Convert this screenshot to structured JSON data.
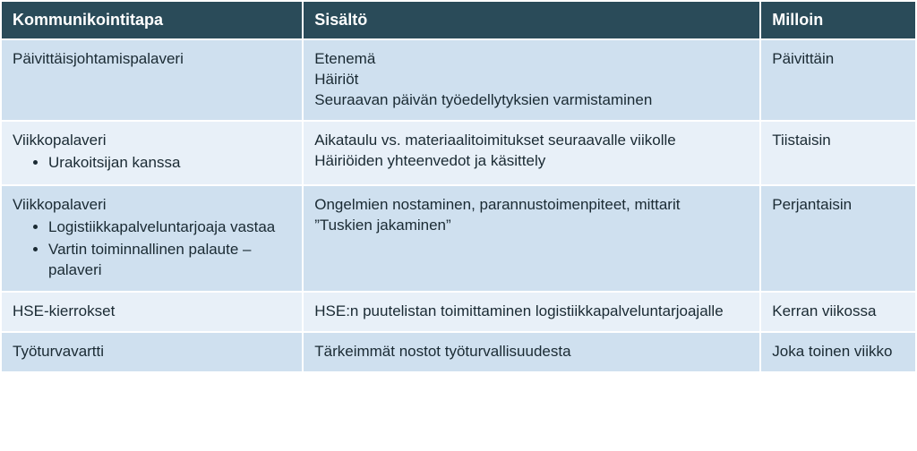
{
  "table": {
    "type": "table",
    "header_bg": "#2a4b59",
    "header_text_color": "#ffffff",
    "row_colors": [
      "#cfe0ef",
      "#e8f0f8"
    ],
    "text_color": "#1a2a33",
    "header_fontsize": 18,
    "body_fontsize": 17,
    "col_widths": [
      "33%",
      "50%",
      "17%"
    ],
    "columns": [
      "Kommunikointitapa",
      "Sisältö",
      "Milloin"
    ],
    "rows": [
      {
        "c0": {
          "title": "Päivittäisjohtamispalaveri",
          "bullets": []
        },
        "c1": {
          "lines": [
            "Etenemä",
            "Häiriöt",
            "Seuraavan päivän työedellytyksien varmistaminen"
          ]
        },
        "c2": "Päivittäin"
      },
      {
        "c0": {
          "title": "Viikkopalaveri",
          "bullets": [
            "Urakoitsijan kanssa"
          ]
        },
        "c1": {
          "lines": [
            "Aikataulu vs. materiaalitoimitukset seuraavalle viikolle",
            "Häiriöiden yhteenvedot ja käsittely"
          ]
        },
        "c2": "Tiistaisin"
      },
      {
        "c0": {
          "title": "Viikkopalaveri",
          "bullets": [
            "Logistiikkapalveluntarjoaja vastaa",
            "Vartin toiminnallinen palaute –palaveri"
          ]
        },
        "c1": {
          "lines": [
            "Ongelmien nostaminen, parannustoimenpiteet, mittarit",
            "”Tuskien jakaminen”"
          ]
        },
        "c2": "Perjantaisin"
      },
      {
        "c0": {
          "title": "HSE-kierrokset",
          "bullets": []
        },
        "c1": {
          "lines": [
            "HSE:n puutelistan toimittaminen logistiikkapalveluntarjoajalle"
          ]
        },
        "c2": "Kerran viikossa"
      },
      {
        "c0": {
          "title": "Työturvavartti",
          "bullets": []
        },
        "c1": {
          "lines": [
            "Tärkeimmät nostot työturvallisuudesta"
          ]
        },
        "c2": "Joka toinen viikko"
      }
    ]
  }
}
